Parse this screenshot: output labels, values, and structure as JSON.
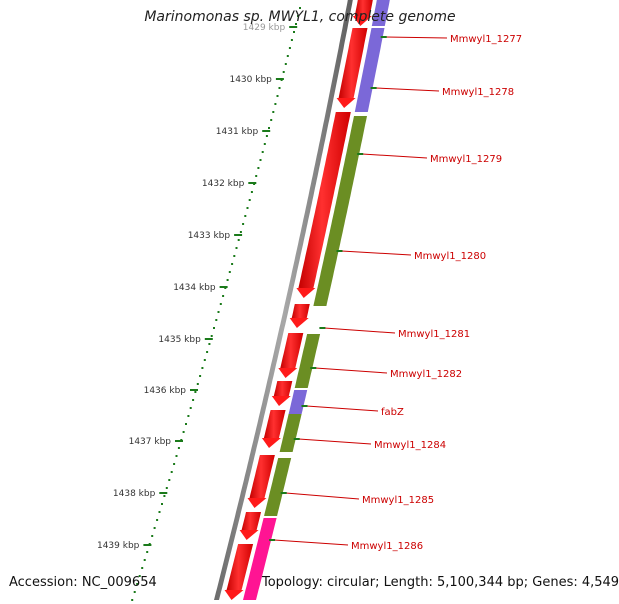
{
  "title": "Marinomonas sp. MWYL1, complete genome",
  "accession": "Accession: NC_009654",
  "summary": "Topology: circular; Length: 5,100,344 bp; Genes: 4,549",
  "ruler_labels": [
    "1429 kbp",
    "1430 kbp",
    "1431 kbp",
    "1432 kbp",
    "1433 kbp",
    "1434 kbp",
    "1435 kbp",
    "1436 kbp",
    "1437 kbp",
    "1438 kbp",
    "1439 kbp"
  ],
  "gene_labels": [
    "Mmwyl1_1277",
    "Mmwyl1_1278",
    "Mmwyl1_1279",
    "Mmwyl1_1280",
    "Mmwyl1_1281",
    "Mmwyl1_1282",
    "fabZ",
    "Mmwyl1_1284",
    "Mmwyl1_1285",
    "Mmwyl1_1286"
  ],
  "colors": {
    "cds": "#ff1a1a",
    "cog_purple": "#7b68d8",
    "cog_green": "#6b8e23",
    "cog_pink": "#ff1493",
    "backbone": "#7f7f7f",
    "ruler": "#1a7a1a",
    "label": "#cc0000"
  }
}
